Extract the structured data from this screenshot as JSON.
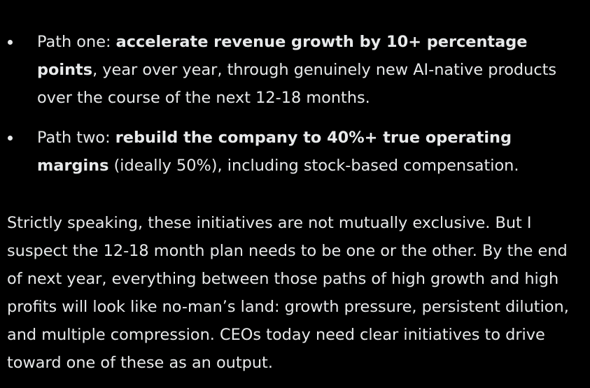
{
  "bullets": [
    {
      "prefix": "Path one: ",
      "bold": "accelerate revenue growth by 10+ percentage points",
      "suffix": ", year over year, through genuinely new AI-native products over the course of the next 12-18 months."
    },
    {
      "prefix": "Path two: ",
      "bold": "rebuild the company to 40%+ true operating margins",
      "suffix": " (ideally 50%), including stock-based compensation."
    }
  ],
  "paragraph": "Strictly speaking, these initiatives are not mutually exclusive. But I suspect the 12-18 month plan needs to be one or the other. By the end of next year, everything between those paths of high growth and high profits will look like no-man’s land: growth pressure, persistent dilution, and multiple compression. CEOs today need clear initiatives to drive toward one of these as an output.",
  "colors": {
    "background": "#000000",
    "text": "#e7e9ea"
  }
}
